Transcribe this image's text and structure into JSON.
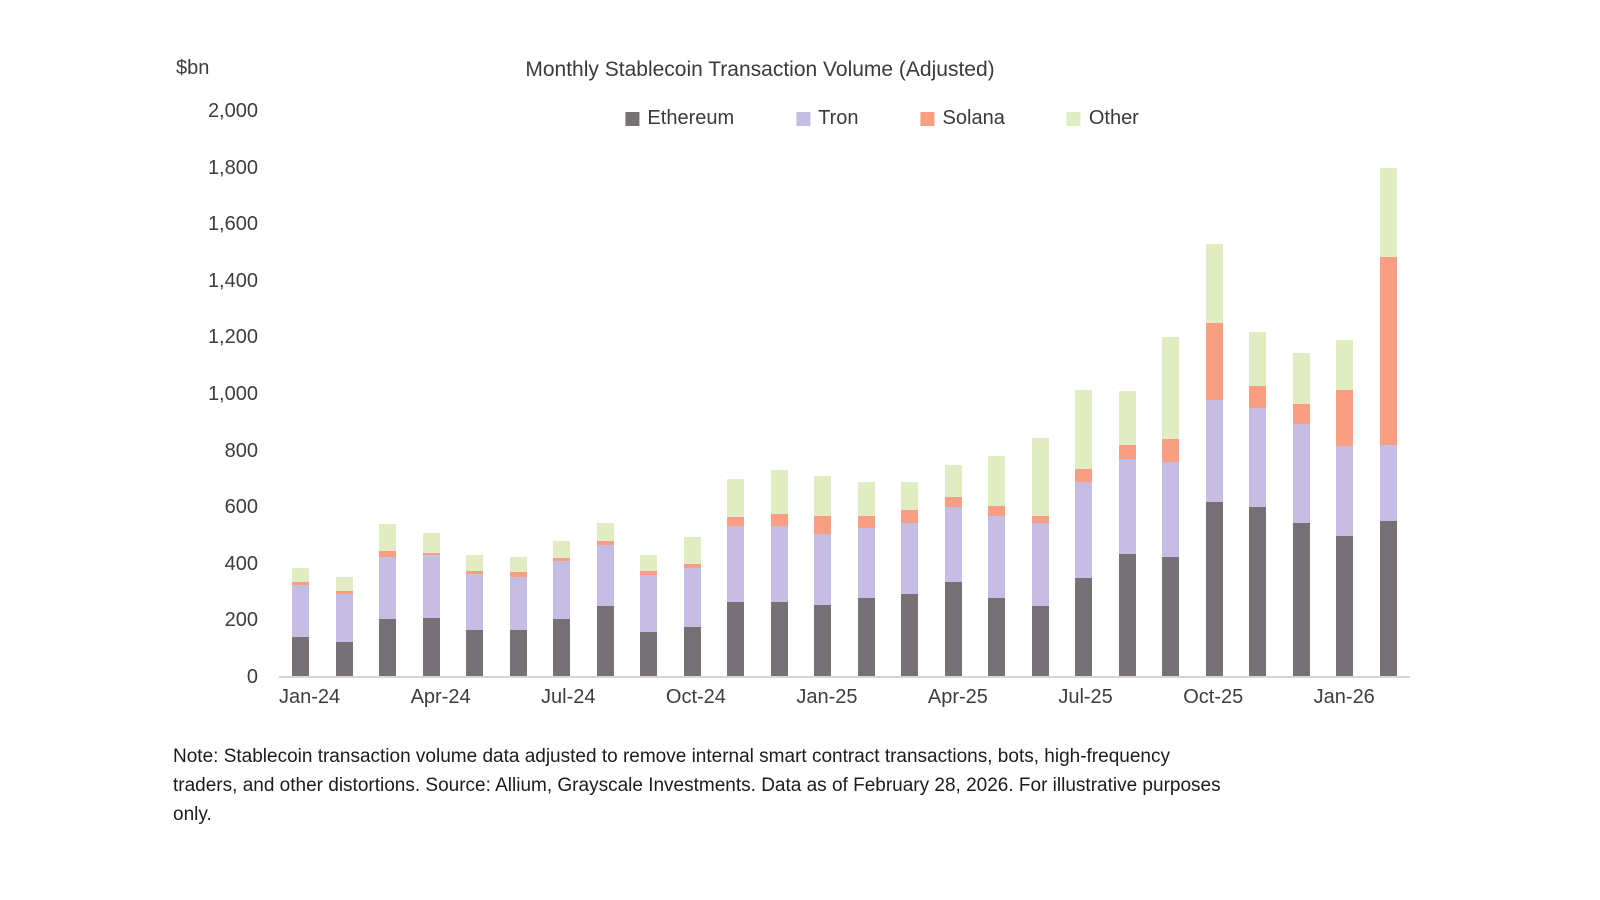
{
  "header": {
    "title": "Monthly Stablecoin Transaction Volume (Adjusted)",
    "unit_label": "$bn"
  },
  "chart_data": {
    "type": "bar",
    "stacked": true,
    "title": "Monthly Stablecoin Transaction Volume (Adjusted)",
    "ylabel": "$bn",
    "ylim": [
      0,
      2000
    ],
    "y_tick_step": 200,
    "y_ticks": [
      "0",
      "200",
      "400",
      "600",
      "800",
      "1,000",
      "1,200",
      "1,400",
      "1,600",
      "1,800",
      "2,000"
    ],
    "grid": false,
    "legend_position": "top",
    "x_tick_every": 3,
    "x_tick_labels_shown": [
      "Jan-24",
      "Apr-24",
      "Jul-24",
      "Oct-24",
      "Jan-25",
      "Apr-25",
      "Jul-25",
      "Oct-25",
      "Jan-26"
    ],
    "categories": [
      "Jan-24",
      "Feb-24",
      "Mar-24",
      "Apr-24",
      "May-24",
      "Jun-24",
      "Jul-24",
      "Aug-24",
      "Sep-24",
      "Oct-24",
      "Nov-24",
      "Dec-24",
      "Jan-25",
      "Feb-25",
      "Mar-25",
      "Apr-25",
      "May-25",
      "Jun-25",
      "Jul-25",
      "Aug-25",
      "Sep-25",
      "Oct-25",
      "Nov-25",
      "Dec-25",
      "Jan-26",
      "Feb-26"
    ],
    "series": [
      {
        "name": "Ethereum",
        "color": "#757175",
        "values": [
          140,
          125,
          205,
          210,
          165,
          165,
          205,
          250,
          160,
          175,
          265,
          265,
          255,
          280,
          295,
          335,
          280,
          250,
          350,
          435,
          425,
          620,
          600,
          545,
          500,
          550
        ]
      },
      {
        "name": "Tron",
        "color": "#c5bde3",
        "values": [
          185,
          170,
          220,
          220,
          200,
          190,
          205,
          215,
          200,
          210,
          270,
          270,
          250,
          245,
          250,
          265,
          290,
          295,
          340,
          335,
          335,
          360,
          350,
          350,
          315,
          270
        ]
      },
      {
        "name": "Solana",
        "color": "#f99e82",
        "values": [
          10,
          10,
          20,
          10,
          10,
          15,
          10,
          15,
          15,
          15,
          30,
          40,
          65,
          45,
          45,
          35,
          35,
          25,
          45,
          50,
          80,
          270,
          80,
          70,
          200,
          665
        ]
      },
      {
        "name": "Other",
        "color": "#e1ecc3",
        "values": [
          50,
          50,
          95,
          70,
          55,
          55,
          60,
          65,
          55,
          95,
          135,
          155,
          140,
          120,
          100,
          115,
          175,
          275,
          280,
          190,
          360,
          280,
          190,
          180,
          175,
          315
        ]
      }
    ],
    "totals": [
      385,
      355,
      540,
      510,
      430,
      425,
      480,
      545,
      430,
      495,
      700,
      730,
      710,
      690,
      690,
      750,
      780,
      845,
      1015,
      1010,
      1200,
      1530,
      1220,
      1145,
      1190,
      1800
    ]
  },
  "note": {
    "lines": [
      "Note: Stablecoin transaction volume data adjusted to remove internal smart contract transactions, bots, high-frequency",
      "traders, and other distortions. Source: Allium, Grayscale Investments. Data as of February 28, 2026. For illustrative purposes",
      "only."
    ]
  }
}
